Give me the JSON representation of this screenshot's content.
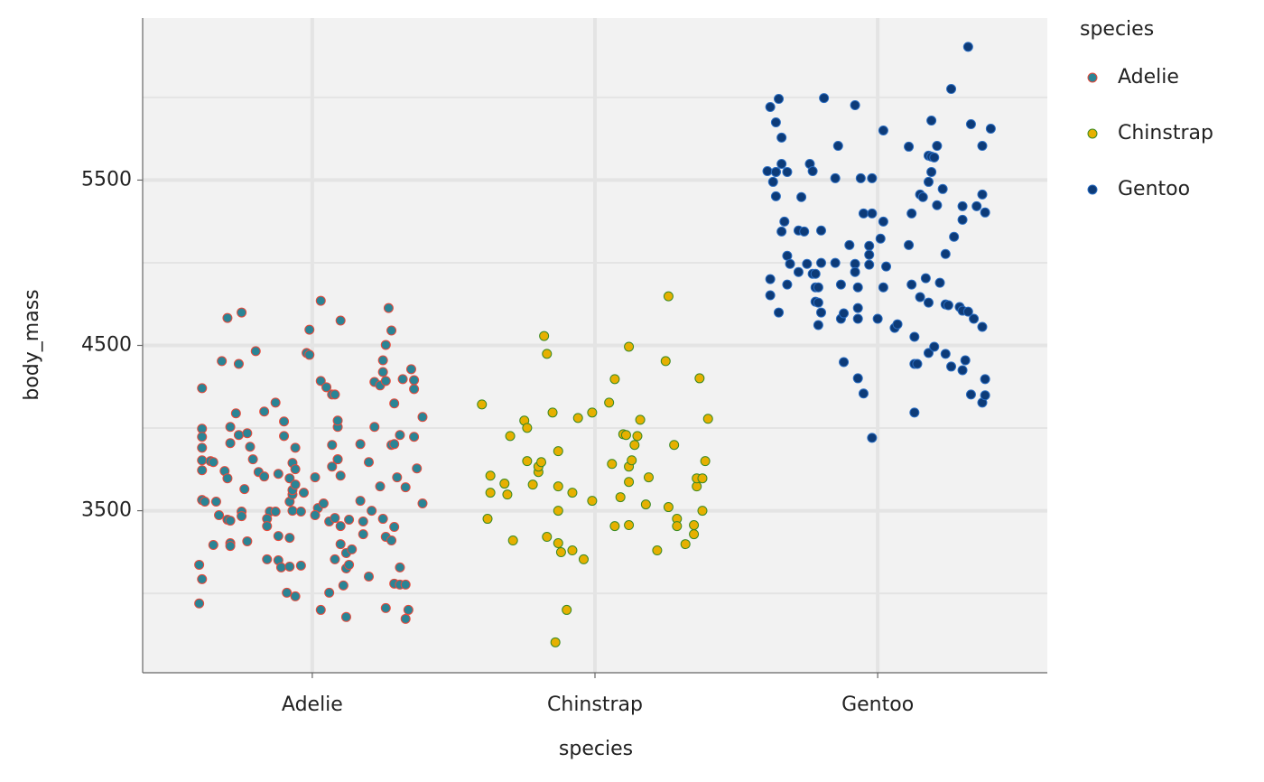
{
  "chart_data": {
    "type": "scatter",
    "x_label": "species",
    "y_label": "body_mass",
    "legend_title": "species",
    "xlim": [
      0.4,
      3.6
    ],
    "ylim": [
      2520,
      6480
    ],
    "xticks": [
      {
        "value": 1,
        "label": "Adelie"
      },
      {
        "value": 2,
        "label": "Chinstrap"
      },
      {
        "value": 3,
        "label": "Gentoo"
      }
    ],
    "yticks": [
      3500,
      4500,
      5500
    ],
    "y_minor_grid": [
      3000,
      4000,
      5000,
      6000
    ],
    "grid": true,
    "legend": "right",
    "series": [
      {
        "name": "Adelie",
        "color": "#2a8495",
        "edgecolor": "#e8493a",
        "x": [
          0.61,
          0.61,
          0.61,
          0.61,
          0.61,
          0.61,
          0.61,
          0.62,
          0.6,
          0.61,
          0.6,
          0.64,
          0.65,
          0.66,
          0.67,
          0.65,
          0.68,
          0.69,
          0.7,
          0.7,
          0.71,
          0.71,
          0.7,
          0.71,
          0.71,
          0.71,
          0.73,
          0.75,
          0.74,
          0.74,
          0.75,
          0.75,
          0.76,
          0.77,
          0.77,
          0.78,
          0.79,
          0.8,
          0.81,
          0.83,
          0.83,
          0.84,
          0.85,
          0.84,
          0.84,
          0.87,
          0.88,
          0.87,
          0.88,
          0.88,
          0.89,
          0.9,
          0.9,
          0.91,
          0.92,
          0.92,
          0.92,
          0.92,
          0.93,
          0.93,
          0.93,
          0.93,
          0.94,
          0.94,
          0.94,
          0.94,
          0.96,
          0.96,
          0.97,
          0.98,
          0.99,
          0.99,
          1.01,
          1.02,
          1.01,
          1.03,
          1.03,
          1.03,
          1.04,
          1.05,
          1.06,
          1.06,
          1.07,
          1.07,
          1.07,
          1.08,
          1.08,
          1.08,
          1.09,
          1.09,
          1.09,
          1.1,
          1.09,
          1.1,
          1.1,
          1.1,
          1.11,
          1.12,
          1.12,
          1.12,
          1.13,
          1.14,
          1.13,
          1.17,
          1.17,
          1.18,
          1.18,
          1.2,
          1.2,
          1.21,
          1.22,
          1.22,
          1.24,
          1.24,
          1.25,
          1.25,
          1.25,
          1.26,
          1.26,
          1.26,
          1.26,
          1.27,
          1.28,
          1.28,
          1.28,
          1.29,
          1.29,
          1.29,
          1.29,
          1.3,
          1.31,
          1.31,
          1.31,
          1.33,
          1.32,
          1.33,
          1.33,
          1.34,
          1.35,
          1.36,
          1.36,
          1.36,
          1.37,
          1.39,
          1.39
        ],
        "values": [
          4241,
          3996,
          3947,
          3881,
          3805,
          3745,
          3565,
          3555,
          3173,
          3086,
          2939,
          3800,
          3794,
          3555,
          3473,
          3293,
          4405,
          3740,
          3696,
          4666,
          4007,
          3909,
          3446,
          3440,
          3304,
          3287,
          4089,
          4699,
          4388,
          3958,
          3495,
          3467,
          3631,
          3315,
          3969,
          3887,
          3811,
          4465,
          3734,
          4100,
          3707,
          3206,
          3495,
          3451,
          3407,
          4154,
          3723,
          3495,
          3347,
          3200,
          3157,
          4040,
          3952,
          3004,
          3696,
          3336,
          3555,
          3162,
          3789,
          3598,
          3625,
          3500,
          2982,
          3881,
          3751,
          3658,
          3495,
          3168,
          3609,
          4454,
          4443,
          4595,
          3702,
          3516,
          3473,
          2900,
          4770,
          4285,
          3544,
          4247,
          3004,
          3435,
          3898,
          4203,
          3767,
          3456,
          3206,
          4203,
          3811,
          4007,
          4045,
          3407,
          3811,
          3712,
          4650,
          3298,
          3048,
          3151,
          2857,
          3244,
          3446,
          3266,
          3173,
          3903,
          3560,
          3435,
          3358,
          3794,
          3102,
          3500,
          4279,
          4007,
          3647,
          4258,
          4410,
          4339,
          3451,
          2911,
          4503,
          4285,
          3342,
          4726,
          4590,
          3898,
          3320,
          3402,
          4149,
          3903,
          3059,
          3702,
          3157,
          3958,
          3053,
          3642,
          4296,
          3053,
          2846,
          2900,
          4356,
          4290,
          4236,
          3947,
          3756,
          4067,
          3544
        ]
      },
      {
        "name": "Chinstrap",
        "color": "#e6b000",
        "edgecolor": "#3a8a22",
        "x": [
          1.6,
          1.63,
          1.63,
          1.62,
          1.68,
          1.69,
          1.7,
          1.71,
          1.75,
          1.76,
          1.76,
          1.78,
          1.8,
          1.8,
          1.81,
          1.82,
          1.83,
          1.83,
          1.85,
          1.86,
          1.87,
          1.87,
          1.87,
          1.87,
          1.88,
          1.9,
          1.92,
          1.92,
          1.94,
          1.96,
          1.99,
          1.99,
          2.05,
          2.06,
          2.07,
          2.07,
          2.09,
          2.1,
          2.11,
          2.12,
          2.12,
          2.12,
          2.12,
          2.13,
          2.14,
          2.15,
          2.16,
          2.18,
          2.19,
          2.22,
          2.25,
          2.26,
          2.26,
          2.28,
          2.29,
          2.29,
          2.32,
          2.35,
          2.35,
          2.36,
          2.36,
          2.37,
          2.38,
          2.38,
          2.39,
          2.4
        ],
        "values": [
          4143,
          3712,
          3609,
          3451,
          3664,
          3598,
          3952,
          3320,
          4045,
          4001,
          3800,
          3658,
          3734,
          3767,
          3794,
          4557,
          4449,
          3342,
          4094,
          2704,
          3500,
          3647,
          3860,
          3304,
          3249,
          2900,
          3609,
          3260,
          4061,
          3206,
          3560,
          4094,
          4154,
          3783,
          4296,
          3407,
          3582,
          3963,
          3958,
          4492,
          3674,
          3413,
          3767,
          3805,
          3898,
          3952,
          4050,
          3538,
          3702,
          3260,
          4405,
          4797,
          3522,
          3898,
          3451,
          3407,
          3298,
          3358,
          3413,
          3647,
          3696,
          4301,
          3696,
          3500,
          3800,
          4056
        ]
      },
      {
        "name": "Gentoo",
        "color": "#0d3b78",
        "edgecolor": "#2a6cc0",
        "x": [
          2.61,
          2.62,
          2.63,
          2.64,
          2.64,
          2.64,
          2.64,
          2.65,
          2.66,
          2.66,
          2.67,
          2.66,
          2.68,
          2.68,
          2.62,
          2.62,
          2.65,
          2.68,
          2.69,
          2.72,
          2.72,
          2.73,
          2.74,
          2.75,
          2.76,
          2.77,
          2.77,
          2.78,
          2.78,
          2.79,
          2.78,
          2.79,
          2.8,
          2.79,
          2.8,
          2.8,
          2.81,
          2.85,
          2.85,
          2.86,
          2.87,
          2.87,
          2.88,
          2.88,
          2.9,
          2.92,
          2.92,
          2.92,
          2.93,
          2.93,
          2.93,
          2.93,
          2.95,
          2.94,
          2.95,
          2.97,
          2.97,
          2.98,
          2.97,
          2.98,
          2.98,
          3.0,
          3.01,
          3.02,
          3.02,
          3.02,
          3.03,
          3.06,
          3.07,
          3.11,
          3.11,
          3.12,
          3.12,
          3.13,
          3.13,
          3.13,
          3.14,
          3.15,
          3.15,
          3.16,
          3.17,
          3.18,
          3.18,
          3.18,
          3.19,
          3.19,
          3.19,
          3.2,
          3.18,
          3.2,
          3.21,
          3.21,
          3.22,
          3.23,
          3.24,
          3.24,
          3.24,
          3.25,
          3.26,
          3.26,
          3.27,
          3.29,
          3.3,
          3.3,
          3.3,
          3.3,
          3.31,
          3.32,
          3.32,
          3.33,
          3.33,
          3.34,
          3.35,
          3.37,
          3.37,
          3.37,
          3.37,
          3.38,
          3.38,
          3.38,
          3.4
        ],
        "values": [
          5554,
          5942,
          5489,
          5849,
          5549,
          5402,
          5549,
          5991,
          5757,
          5598,
          5249,
          5189,
          5549,
          5042,
          4901,
          4803,
          4699,
          4868,
          4993,
          4944,
          5195,
          5397,
          5189,
          4993,
          5598,
          5554,
          4933,
          4851,
          4933,
          4851,
          4764,
          4759,
          4699,
          4623,
          5195,
          4999,
          5996,
          5511,
          4999,
          5707,
          4868,
          4661,
          4399,
          4694,
          5107,
          5953,
          4993,
          4944,
          4851,
          4726,
          4661,
          4301,
          4209,
          5511,
          5298,
          5102,
          5048,
          5511,
          4988,
          5298,
          3941,
          4661,
          5146,
          5249,
          5800,
          4851,
          4977,
          4606,
          4628,
          5702,
          5107,
          5298,
          4868,
          4552,
          4094,
          4388,
          4388,
          5413,
          4792,
          5397,
          4906,
          5648,
          5489,
          4759,
          5642,
          5860,
          5549,
          5637,
          4454,
          4492,
          5707,
          5348,
          4879,
          5446,
          5053,
          4748,
          4449,
          4743,
          6051,
          4372,
          5157,
          4732,
          4350,
          5342,
          5260,
          4710,
          4410,
          6306,
          4704,
          5838,
          4203,
          4661,
          5342,
          4154,
          5707,
          4612,
          5413,
          5304,
          4296,
          4198,
          5811
        ]
      }
    ]
  }
}
